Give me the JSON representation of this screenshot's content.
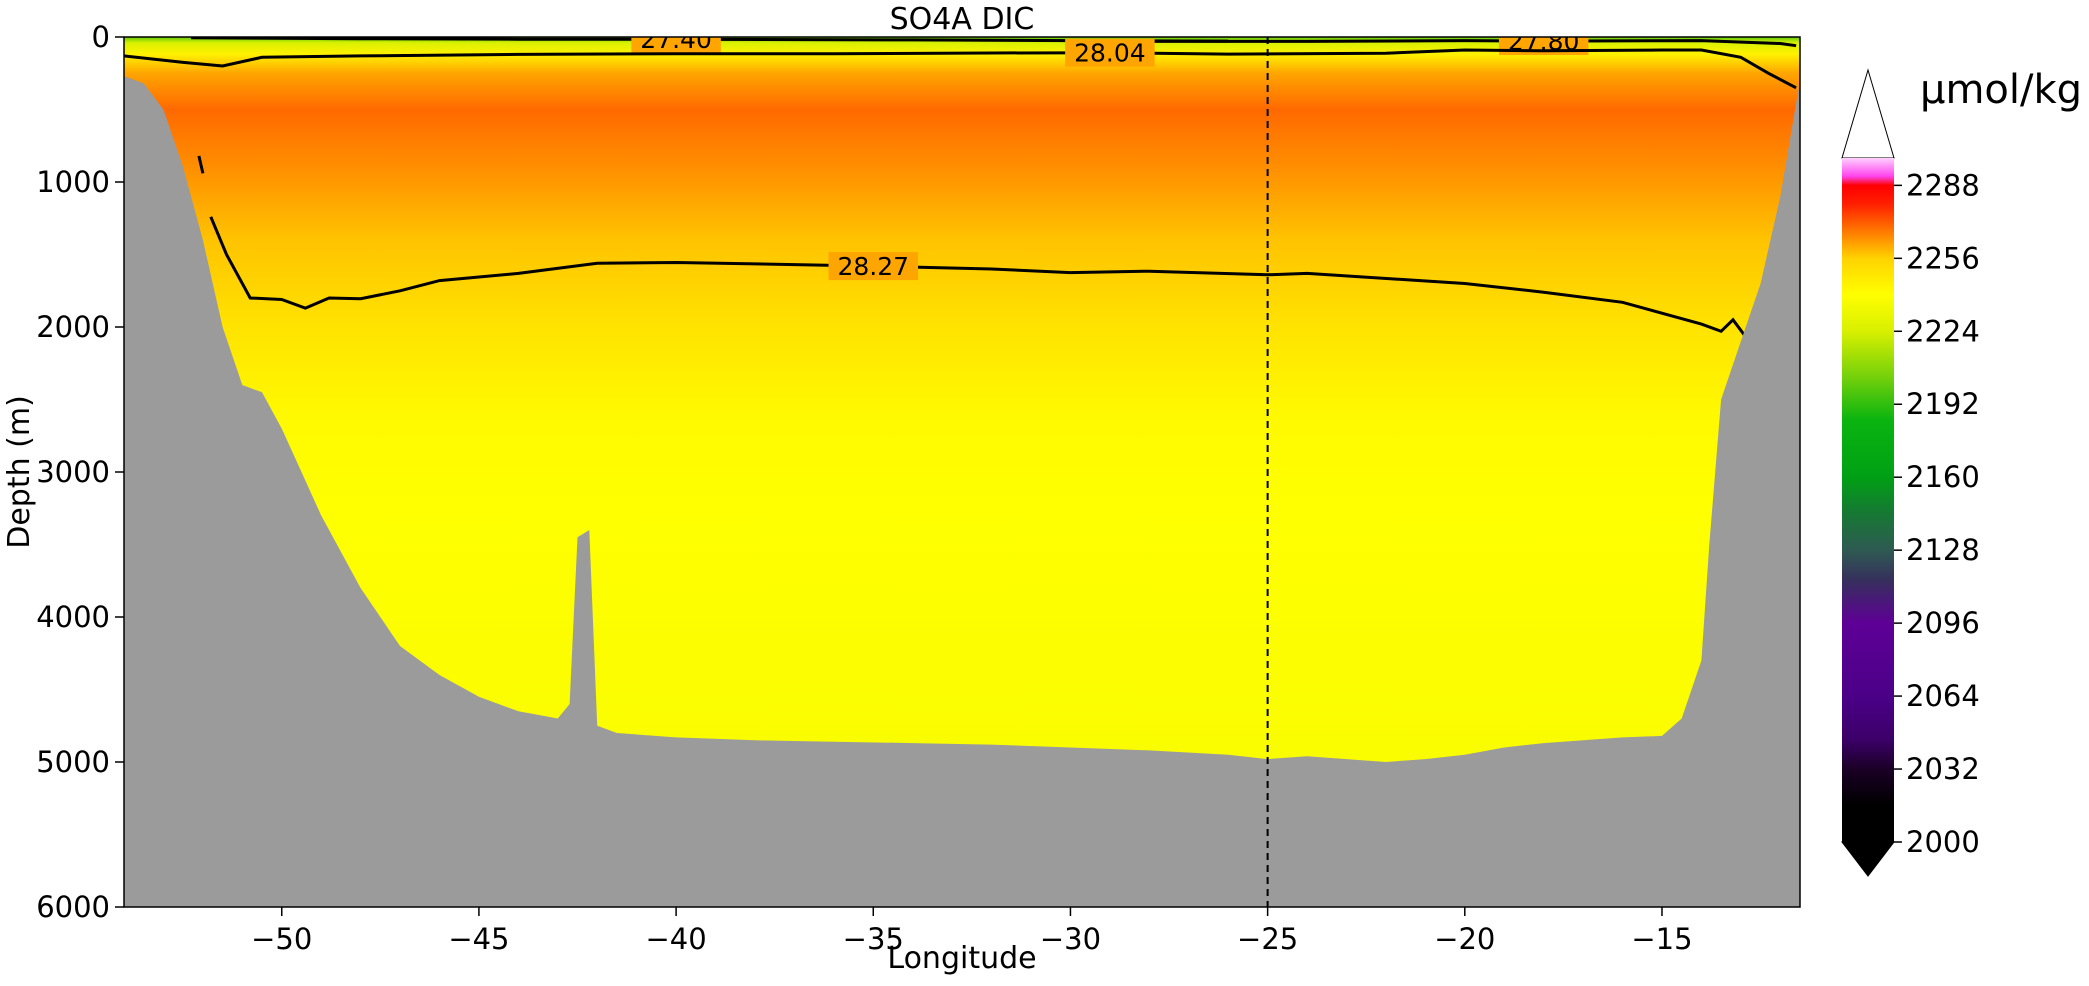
{
  "chart_data": {
    "type": "heatmap",
    "title": "SO4A DIC",
    "xlabel": "Longitude",
    "ylabel": "Depth (m)",
    "xlim": [
      -54,
      -11.5
    ],
    "ylim": [
      6000,
      0
    ],
    "y_inverted": true,
    "x_ticks": [
      -50,
      -45,
      -40,
      -35,
      -30,
      -25,
      -20,
      -15
    ],
    "x_tick_labels": [
      "−50",
      "−45",
      "−40",
      "−35",
      "−30",
      "−25",
      "−20",
      "−15"
    ],
    "y_ticks": [
      0,
      1000,
      2000,
      3000,
      4000,
      5000,
      6000
    ],
    "y_tick_labels": [
      "0",
      "1000",
      "2000",
      "3000",
      "4000",
      "5000",
      "6000"
    ],
    "reference_line": {
      "x": -25,
      "style": "dashed",
      "color": "#000000"
    },
    "colorbar": {
      "unit": "µmol/kg",
      "min": 2000,
      "max": 2300,
      "extend": "both",
      "ticks": [
        2000,
        2032,
        2064,
        2096,
        2128,
        2160,
        2192,
        2224,
        2256,
        2288
      ],
      "tick_labels": [
        "2000",
        "2032",
        "2064",
        "2096",
        "2128",
        "2160",
        "2192",
        "2224",
        "2256",
        "2288"
      ],
      "stops": [
        {
          "value": 2000,
          "color": "#000000"
        },
        {
          "value": 2016,
          "color": "#000000"
        },
        {
          "value": 2032,
          "color": "#1a0026"
        },
        {
          "value": 2045,
          "color": "#3c0068"
        },
        {
          "value": 2064,
          "color": "#4b0088"
        },
        {
          "value": 2096,
          "color": "#5e0096"
        },
        {
          "value": 2115,
          "color": "#36305c"
        },
        {
          "value": 2128,
          "color": "#2e5a52"
        },
        {
          "value": 2145,
          "color": "#157a32"
        },
        {
          "value": 2160,
          "color": "#00a014"
        },
        {
          "value": 2185,
          "color": "#0ab410"
        },
        {
          "value": 2205,
          "color": "#7ad20a"
        },
        {
          "value": 2224,
          "color": "#d8f000"
        },
        {
          "value": 2240,
          "color": "#ffff00"
        },
        {
          "value": 2256,
          "color": "#ffd200"
        },
        {
          "value": 2268,
          "color": "#ff7800"
        },
        {
          "value": 2280,
          "color": "#ff1e00"
        },
        {
          "value": 2288,
          "color": "#ff0000"
        },
        {
          "value": 2292,
          "color": "#ff44ee"
        },
        {
          "value": 2300,
          "color": "#ffd0ff"
        }
      ],
      "extend_low_color": "#000000",
      "extend_high_color": "#ffffff"
    },
    "field_profile": [
      {
        "depth": 0,
        "value": 2200
      },
      {
        "depth": 40,
        "value": 2225
      },
      {
        "depth": 120,
        "value": 2245
      },
      {
        "depth": 250,
        "value": 2262
      },
      {
        "depth": 500,
        "value": 2270
      },
      {
        "depth": 900,
        "value": 2265
      },
      {
        "depth": 1400,
        "value": 2258
      },
      {
        "depth": 2000,
        "value": 2250
      },
      {
        "depth": 2600,
        "value": 2242
      },
      {
        "depth": 3200,
        "value": 2240
      },
      {
        "depth": 5000,
        "value": 2238
      }
    ],
    "contours": [
      {
        "label": "27.40",
        "points": [
          [
            -52.3,
            5
          ],
          [
            -48,
            12
          ],
          [
            -44,
            15
          ],
          [
            -40,
            15
          ],
          [
            -34,
            20
          ],
          [
            -30,
            25
          ],
          [
            -26,
            28
          ]
        ]
      },
      {
        "label": "27.80",
        "points": [
          [
            -28,
            30
          ],
          [
            -24,
            30
          ],
          [
            -20,
            25
          ],
          [
            -18,
            28
          ],
          [
            -14,
            25
          ],
          [
            -12,
            45
          ],
          [
            -11.6,
            60
          ]
        ]
      },
      {
        "label": "28.04",
        "points": [
          [
            -54,
            130
          ],
          [
            -52.5,
            175
          ],
          [
            -51.5,
            200
          ],
          [
            -50.5,
            140
          ],
          [
            -48,
            130
          ],
          [
            -44,
            120
          ],
          [
            -40,
            115
          ],
          [
            -36,
            115
          ],
          [
            -32,
            110
          ],
          [
            -29,
            108
          ],
          [
            -26,
            118
          ],
          [
            -22,
            112
          ],
          [
            -20,
            90
          ],
          [
            -18,
            95
          ],
          [
            -15,
            90
          ],
          [
            -14,
            90
          ],
          [
            -13,
            140
          ],
          [
            -12.3,
            250
          ],
          [
            -11.6,
            350
          ]
        ]
      },
      {
        "label": "28.27",
        "points": [
          [
            -51.8,
            1240
          ],
          [
            -51.4,
            1500
          ],
          [
            -50.8,
            1800
          ],
          [
            -50,
            1810
          ],
          [
            -49.4,
            1870
          ],
          [
            -48.8,
            1800
          ],
          [
            -48,
            1805
          ],
          [
            -47,
            1750
          ],
          [
            -46,
            1680
          ],
          [
            -44,
            1630
          ],
          [
            -42,
            1560
          ],
          [
            -40,
            1555
          ],
          [
            -37,
            1570
          ],
          [
            -35,
            1580
          ],
          [
            -32,
            1600
          ],
          [
            -30,
            1625
          ],
          [
            -28,
            1615
          ],
          [
            -25,
            1640
          ],
          [
            -24,
            1630
          ],
          [
            -20,
            1700
          ],
          [
            -18,
            1760
          ],
          [
            -16,
            1830
          ],
          [
            -14,
            1980
          ],
          [
            -13.5,
            2030
          ],
          [
            -13.2,
            1950
          ],
          [
            -12.9,
            2060
          ],
          [
            -12.5,
            2180
          ]
        ]
      }
    ],
    "contour_fragments": [
      {
        "points": [
          [
            -52.1,
            820
          ],
          [
            -52,
            940
          ]
        ]
      }
    ],
    "bathymetry": [
      [
        -54,
        270
      ],
      [
        -53.5,
        320
      ],
      [
        -53,
        500
      ],
      [
        -52.5,
        900
      ],
      [
        -52,
        1400
      ],
      [
        -51.5,
        2000
      ],
      [
        -51,
        2400
      ],
      [
        -50.5,
        2450
      ],
      [
        -50,
        2700
      ],
      [
        -49.5,
        3000
      ],
      [
        -49,
        3300
      ],
      [
        -48.5,
        3550
      ],
      [
        -48,
        3800
      ],
      [
        -47,
        4200
      ],
      [
        -46,
        4400
      ],
      [
        -45,
        4550
      ],
      [
        -44,
        4650
      ],
      [
        -43,
        4700
      ],
      [
        -42.7,
        4600
      ],
      [
        -42.5,
        3450
      ],
      [
        -42.2,
        3400
      ],
      [
        -42,
        4750
      ],
      [
        -41.5,
        4800
      ],
      [
        -40,
        4830
      ],
      [
        -38,
        4850
      ],
      [
        -36,
        4860
      ],
      [
        -34,
        4870
      ],
      [
        -32,
        4880
      ],
      [
        -30,
        4900
      ],
      [
        -28,
        4920
      ],
      [
        -26,
        4950
      ],
      [
        -25,
        4980
      ],
      [
        -24,
        4960
      ],
      [
        -22,
        5000
      ],
      [
        -21,
        4980
      ],
      [
        -20,
        4950
      ],
      [
        -19,
        4900
      ],
      [
        -18,
        4870
      ],
      [
        -17,
        4850
      ],
      [
        -16,
        4830
      ],
      [
        -15,
        4820
      ],
      [
        -14.5,
        4700
      ],
      [
        -14,
        4300
      ],
      [
        -13.8,
        3500
      ],
      [
        -13.5,
        2500
      ],
      [
        -13,
        2100
      ],
      [
        -12.5,
        1700
      ],
      [
        -12,
        1100
      ],
      [
        -11.5,
        300
      ]
    ]
  }
}
